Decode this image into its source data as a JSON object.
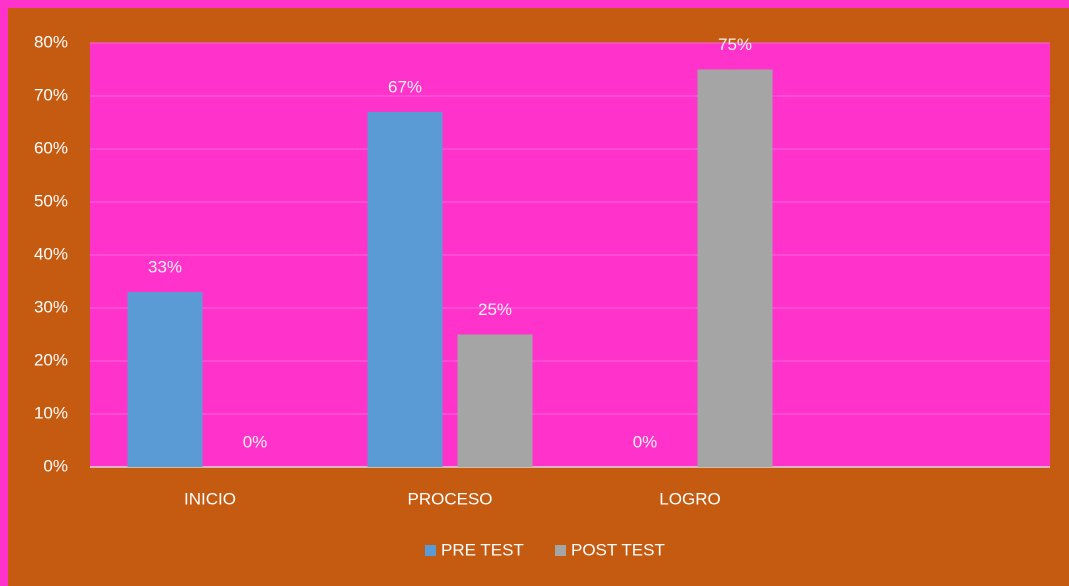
{
  "chart_data": {
    "type": "bar",
    "categories": [
      "INICIO",
      "PROCESO",
      "LOGRO",
      null
    ],
    "series": [
      {
        "name": "PRE TEST",
        "color": "#5b9bd5",
        "values": [
          33,
          67,
          0,
          null
        ],
        "value_labels": [
          "33%",
          "67%",
          "0%",
          null
        ]
      },
      {
        "name": "POST TEST",
        "color": "#a5a5a5",
        "values": [
          0,
          25,
          75,
          null
        ],
        "value_labels": [
          "0%",
          "25%",
          "75%",
          null
        ]
      }
    ],
    "ylim": [
      0,
      80
    ],
    "yticks": [
      {
        "value": 0,
        "label": "0%"
      },
      {
        "value": 10,
        "label": "10%"
      },
      {
        "value": 20,
        "label": "20%"
      },
      {
        "value": 30,
        "label": "30%"
      },
      {
        "value": 40,
        "label": "40%"
      },
      {
        "value": 50,
        "label": "50%"
      },
      {
        "value": 60,
        "label": "60%"
      },
      {
        "value": 70,
        "label": "70%"
      },
      {
        "value": 80,
        "label": "80%"
      }
    ],
    "grid": true,
    "legend": "bottom"
  }
}
